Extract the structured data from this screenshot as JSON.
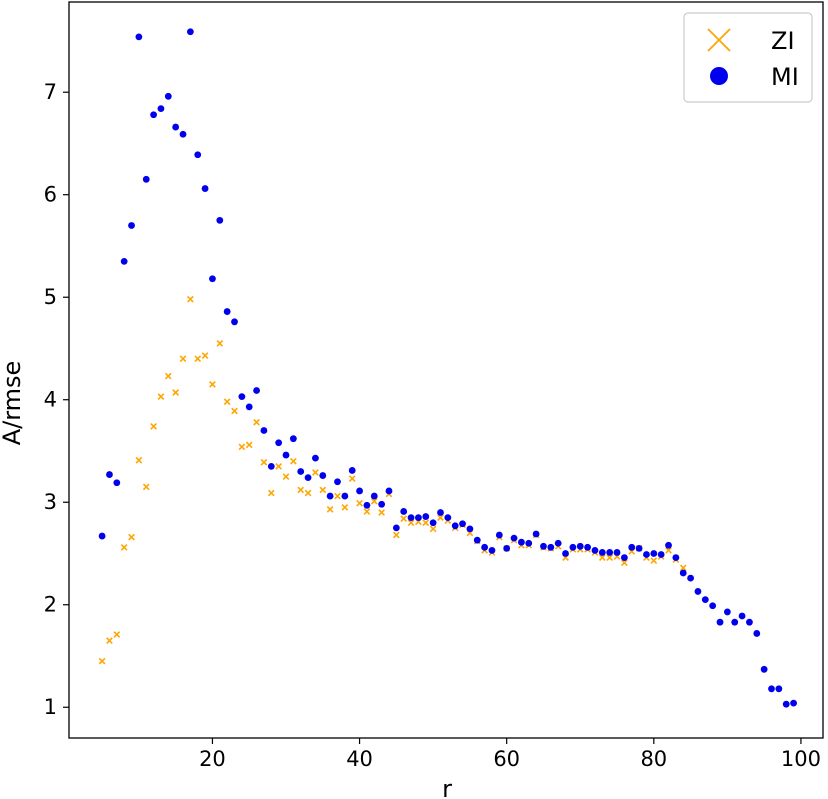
{
  "chart_data": {
    "type": "scatter",
    "xlabel": "r",
    "ylabel": "A/rmse",
    "xlim": [
      0.5,
      103
    ],
    "ylim": [
      0.7,
      7.88
    ],
    "x_ticks": [
      20,
      40,
      60,
      80,
      100
    ],
    "y_ticks": [
      1,
      2,
      3,
      4,
      5,
      6,
      7
    ],
    "grid": false,
    "legend": "top-right",
    "series": [
      {
        "name": "ZI",
        "marker": "x",
        "color": "#FFA500",
        "points": [
          [
            5,
            1.45
          ],
          [
            6,
            1.65
          ],
          [
            7,
            1.71
          ],
          [
            8,
            2.56
          ],
          [
            9,
            2.66
          ],
          [
            10,
            3.41
          ],
          [
            11,
            3.15
          ],
          [
            12,
            3.74
          ],
          [
            13,
            4.03
          ],
          [
            14,
            4.23
          ],
          [
            15,
            4.07
          ],
          [
            16,
            4.4
          ],
          [
            17,
            4.98
          ],
          [
            18,
            4.4
          ],
          [
            19,
            4.43
          ],
          [
            20,
            4.15
          ],
          [
            21,
            4.55
          ],
          [
            22,
            3.98
          ],
          [
            23,
            3.89
          ],
          [
            24,
            3.54
          ],
          [
            25,
            3.56
          ],
          [
            26,
            3.78
          ],
          [
            27,
            3.39
          ],
          [
            28,
            3.09
          ],
          [
            29,
            3.35
          ],
          [
            30,
            3.25
          ],
          [
            31,
            3.4
          ],
          [
            32,
            3.12
          ],
          [
            33,
            3.09
          ],
          [
            34,
            3.29
          ],
          [
            35,
            3.12
          ],
          [
            36,
            2.93
          ],
          [
            37,
            3.06
          ],
          [
            38,
            2.95
          ],
          [
            39,
            3.23
          ],
          [
            40,
            2.99
          ],
          [
            41,
            2.91
          ],
          [
            42,
            3.01
          ],
          [
            43,
            2.9
          ],
          [
            44,
            3.08
          ],
          [
            45,
            2.68
          ],
          [
            46,
            2.84
          ],
          [
            47,
            2.8
          ],
          [
            48,
            2.81
          ],
          [
            49,
            2.8
          ],
          [
            50,
            2.74
          ],
          [
            51,
            2.85
          ],
          [
            52,
            2.82
          ],
          [
            53,
            2.75
          ],
          [
            54,
            2.78
          ],
          [
            55,
            2.7
          ],
          [
            56,
            2.62
          ],
          [
            57,
            2.53
          ],
          [
            58,
            2.51
          ],
          [
            59,
            2.66
          ],
          [
            60,
            2.55
          ],
          [
            61,
            2.63
          ],
          [
            62,
            2.58
          ],
          [
            63,
            2.58
          ],
          [
            64,
            2.68
          ],
          [
            65,
            2.56
          ],
          [
            66,
            2.55
          ],
          [
            67,
            2.57
          ],
          [
            68,
            2.46
          ],
          [
            69,
            2.54
          ],
          [
            70,
            2.54
          ],
          [
            71,
            2.54
          ],
          [
            72,
            2.51
          ],
          [
            73,
            2.46
          ],
          [
            74,
            2.46
          ],
          [
            75,
            2.47
          ],
          [
            76,
            2.41
          ],
          [
            77,
            2.52
          ],
          [
            78,
            2.55
          ],
          [
            79,
            2.46
          ],
          [
            80,
            2.43
          ],
          [
            81,
            2.47
          ],
          [
            82,
            2.53
          ],
          [
            83,
            2.44
          ],
          [
            84,
            2.36
          ]
        ]
      },
      {
        "name": "MI",
        "marker": "o",
        "color": "#0000EE",
        "points": [
          [
            5,
            2.67
          ],
          [
            6,
            3.27
          ],
          [
            7,
            3.19
          ],
          [
            8,
            5.35
          ],
          [
            9,
            5.7
          ],
          [
            10,
            7.54
          ],
          [
            11,
            6.15
          ],
          [
            12,
            6.78
          ],
          [
            13,
            6.84
          ],
          [
            14,
            6.96
          ],
          [
            15,
            6.66
          ],
          [
            16,
            6.59
          ],
          [
            17,
            7.59
          ],
          [
            18,
            6.39
          ],
          [
            19,
            6.06
          ],
          [
            20,
            5.18
          ],
          [
            21,
            5.75
          ],
          [
            22,
            4.86
          ],
          [
            23,
            4.76
          ],
          [
            24,
            4.03
          ],
          [
            25,
            3.93
          ],
          [
            26,
            4.09
          ],
          [
            27,
            3.7
          ],
          [
            28,
            3.35
          ],
          [
            29,
            3.58
          ],
          [
            30,
            3.46
          ],
          [
            31,
            3.62
          ],
          [
            32,
            3.3
          ],
          [
            33,
            3.24
          ],
          [
            34,
            3.43
          ],
          [
            35,
            3.26
          ],
          [
            36,
            3.06
          ],
          [
            37,
            3.2
          ],
          [
            38,
            3.06
          ],
          [
            39,
            3.31
          ],
          [
            40,
            3.11
          ],
          [
            41,
            2.97
          ],
          [
            42,
            3.06
          ],
          [
            43,
            2.98
          ],
          [
            44,
            3.11
          ],
          [
            45,
            2.75
          ],
          [
            46,
            2.91
          ],
          [
            47,
            2.85
          ],
          [
            48,
            2.85
          ],
          [
            49,
            2.86
          ],
          [
            50,
            2.8
          ],
          [
            51,
            2.9
          ],
          [
            52,
            2.85
          ],
          [
            53,
            2.77
          ],
          [
            54,
            2.79
          ],
          [
            55,
            2.74
          ],
          [
            56,
            2.63
          ],
          [
            57,
            2.56
          ],
          [
            58,
            2.53
          ],
          [
            59,
            2.68
          ],
          [
            60,
            2.55
          ],
          [
            61,
            2.65
          ],
          [
            62,
            2.61
          ],
          [
            63,
            2.6
          ],
          [
            64,
            2.69
          ],
          [
            65,
            2.57
          ],
          [
            66,
            2.56
          ],
          [
            67,
            2.6
          ],
          [
            68,
            2.5
          ],
          [
            69,
            2.56
          ],
          [
            70,
            2.57
          ],
          [
            71,
            2.56
          ],
          [
            72,
            2.53
          ],
          [
            73,
            2.51
          ],
          [
            74,
            2.51
          ],
          [
            75,
            2.51
          ],
          [
            76,
            2.46
          ],
          [
            77,
            2.56
          ],
          [
            78,
            2.55
          ],
          [
            79,
            2.49
          ],
          [
            80,
            2.5
          ],
          [
            81,
            2.49
          ],
          [
            82,
            2.58
          ],
          [
            83,
            2.46
          ],
          [
            84,
            2.31
          ],
          [
            85,
            2.26
          ],
          [
            86,
            2.13
          ],
          [
            87,
            2.05
          ],
          [
            88,
            1.99
          ],
          [
            89,
            1.83
          ],
          [
            90,
            1.93
          ],
          [
            91,
            1.83
          ],
          [
            92,
            1.89
          ],
          [
            93,
            1.83
          ],
          [
            94,
            1.72
          ],
          [
            95,
            1.37
          ],
          [
            96,
            1.18
          ],
          [
            97,
            1.18
          ],
          [
            98,
            1.03
          ],
          [
            99,
            1.04
          ]
        ]
      }
    ]
  }
}
